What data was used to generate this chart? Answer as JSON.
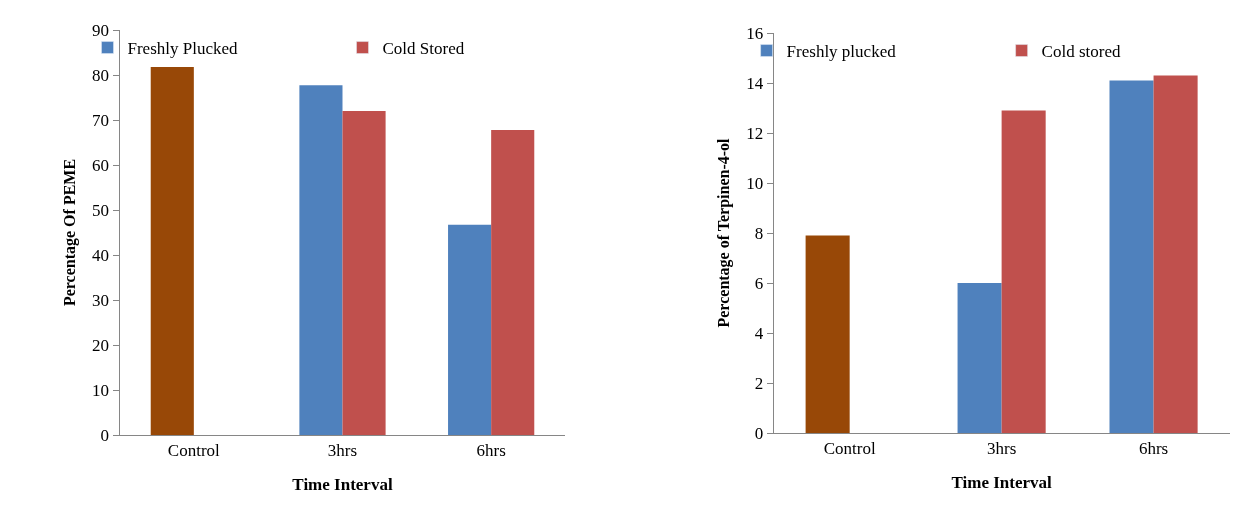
{
  "chart_data": [
    {
      "type": "bar",
      "categories": [
        "Control",
        "3hrs",
        "6hrs"
      ],
      "xlabel": "Time Interval",
      "ylabel": "Percentage Of PEME",
      "ylim": [
        0,
        90
      ],
      "yticks": [
        0,
        10,
        20,
        30,
        40,
        50,
        60,
        70,
        80,
        90
      ],
      "legend": "top",
      "series": [
        {
          "name": "Freshly Plucked",
          "color": "#4f81bd",
          "colors": [
            "#984807",
            "#4f81bd",
            "#4f81bd"
          ],
          "values": [
            81.8,
            77.7,
            46.7
          ]
        },
        {
          "name": "Cold Stored",
          "color": "#c0504d",
          "values": [
            null,
            72,
            67.8
          ]
        }
      ]
    },
    {
      "type": "bar",
      "categories": [
        "Control",
        "3hrs",
        "6hrs"
      ],
      "xlabel": "Time Interval",
      "ylabel": "Percentage of Terpinen-4-ol",
      "ylim": [
        0,
        16
      ],
      "yticks": [
        0,
        2,
        4,
        6,
        8,
        10,
        12,
        14,
        16
      ],
      "legend": "top",
      "series": [
        {
          "name": "Freshly plucked",
          "color": "#4f81bd",
          "colors": [
            "#984807",
            "#4f81bd",
            "#4f81bd"
          ],
          "values": [
            7.9,
            6.0,
            14.1
          ]
        },
        {
          "name": "Cold stored",
          "color": "#c0504d",
          "values": [
            null,
            12.9,
            14.3
          ]
        }
      ]
    }
  ]
}
